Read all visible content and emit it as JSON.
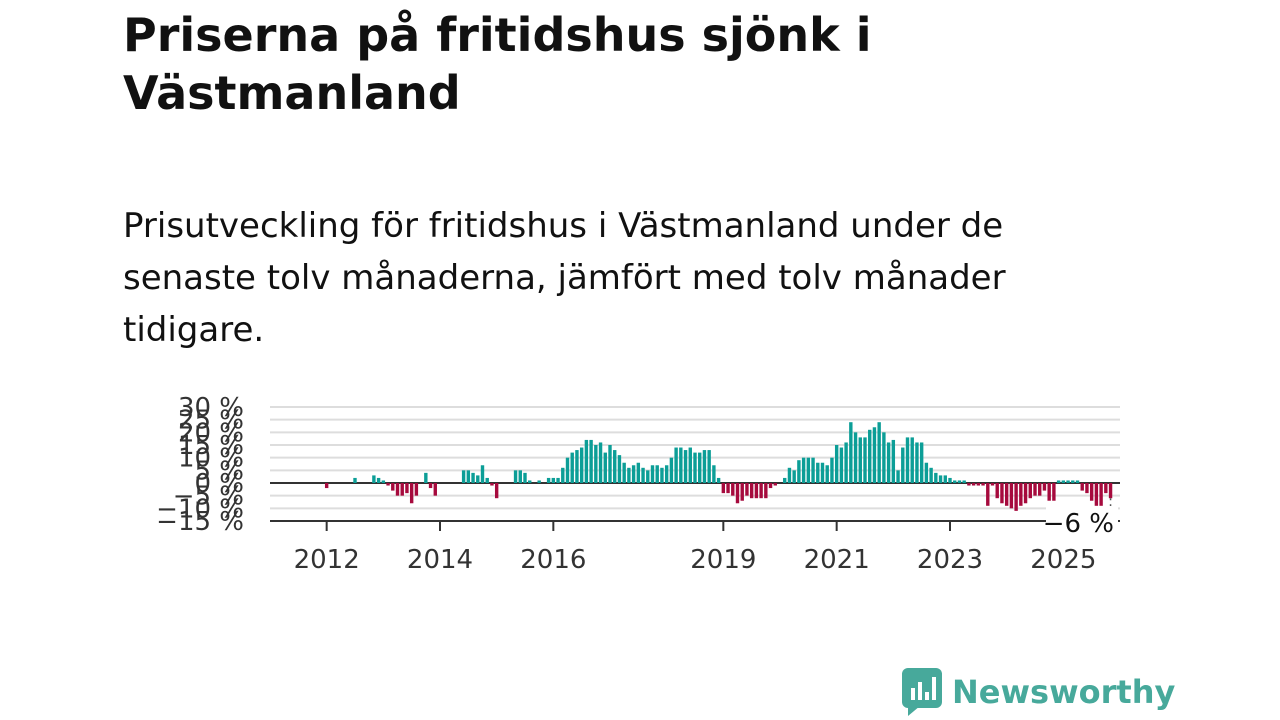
{
  "title": "Priserna på fritidshus sjönk i Västmanland",
  "subtitle": "Prisutveckling för fritidshus i Västmanland under de senaste tolv månaderna, jämfört med tolv månader tidigare.",
  "brand": {
    "name": "Newsworthy",
    "color": "#47a99b"
  },
  "colors": {
    "positive": "#0c9e97",
    "negative": "#a60a3d",
    "gridline": "#dddddd",
    "zero_line": "#333333"
  },
  "chart_data": {
    "type": "bar",
    "title": "",
    "xlabel": "",
    "ylabel": "",
    "ylim": [
      -15,
      30
    ],
    "y_ticks": [
      "30 %",
      "25 %",
      "20 %",
      "15 %",
      "10 %",
      "5 %",
      "0 %",
      "−5 %",
      "−10 %",
      "−15 %"
    ],
    "y_tick_values": [
      30,
      25,
      20,
      15,
      10,
      5,
      0,
      -5,
      -10,
      -15
    ],
    "x_tick_labels": [
      "2012",
      "2014",
      "2016",
      "2019",
      "2021",
      "2023",
      "2025"
    ],
    "x_tick_values": [
      2012.0,
      2014.0,
      2016.0,
      2019.0,
      2021.0,
      2023.0,
      2025.0
    ],
    "series": [
      {
        "x_start": 2011.5,
        "x_step_months": 1,
        "values": [
          0,
          0,
          0,
          0,
          0,
          0,
          -2,
          0,
          0,
          0,
          0,
          0,
          2,
          0,
          0,
          0,
          3,
          2,
          1,
          -1,
          -3,
          -5,
          -5,
          -4,
          -8,
          -5,
          0,
          4,
          -2,
          -5,
          0,
          0,
          0,
          0,
          0,
          5,
          5,
          4,
          3,
          7,
          2,
          -1,
          -6,
          0,
          0,
          0,
          5,
          5,
          4,
          1,
          0,
          1,
          0,
          2,
          2,
          2,
          6,
          10,
          12,
          13,
          14,
          17,
          17,
          15,
          16,
          12,
          15,
          13,
          11,
          8,
          6,
          7,
          8,
          6,
          5,
          7,
          7,
          6,
          7,
          10,
          14,
          14,
          13,
          14,
          12,
          12,
          13,
          13,
          7,
          2,
          -4,
          -4,
          -5,
          -8,
          -7,
          -5,
          -6,
          -6,
          -6,
          -6,
          -2,
          -1,
          0,
          2,
          6,
          5,
          9,
          10,
          10,
          10,
          8,
          8,
          7,
          10,
          15,
          14,
          16,
          24,
          20,
          18,
          18,
          21,
          22,
          24,
          20,
          16,
          17,
          5,
          14,
          18,
          18,
          16,
          16,
          8,
          6,
          4,
          3,
          3,
          2,
          1,
          1,
          1,
          -1,
          -1,
          -1,
          -1,
          -9,
          -1,
          -6,
          -8,
          -9,
          -10,
          -11,
          -9,
          -8,
          -6,
          -5,
          -5,
          -3,
          -7,
          -7,
          1,
          1,
          1,
          1,
          1,
          -3,
          -4,
          -7,
          -9,
          -9,
          -4,
          -6
        ]
      }
    ],
    "last_value_label": "−6 %",
    "last_value": -6
  }
}
